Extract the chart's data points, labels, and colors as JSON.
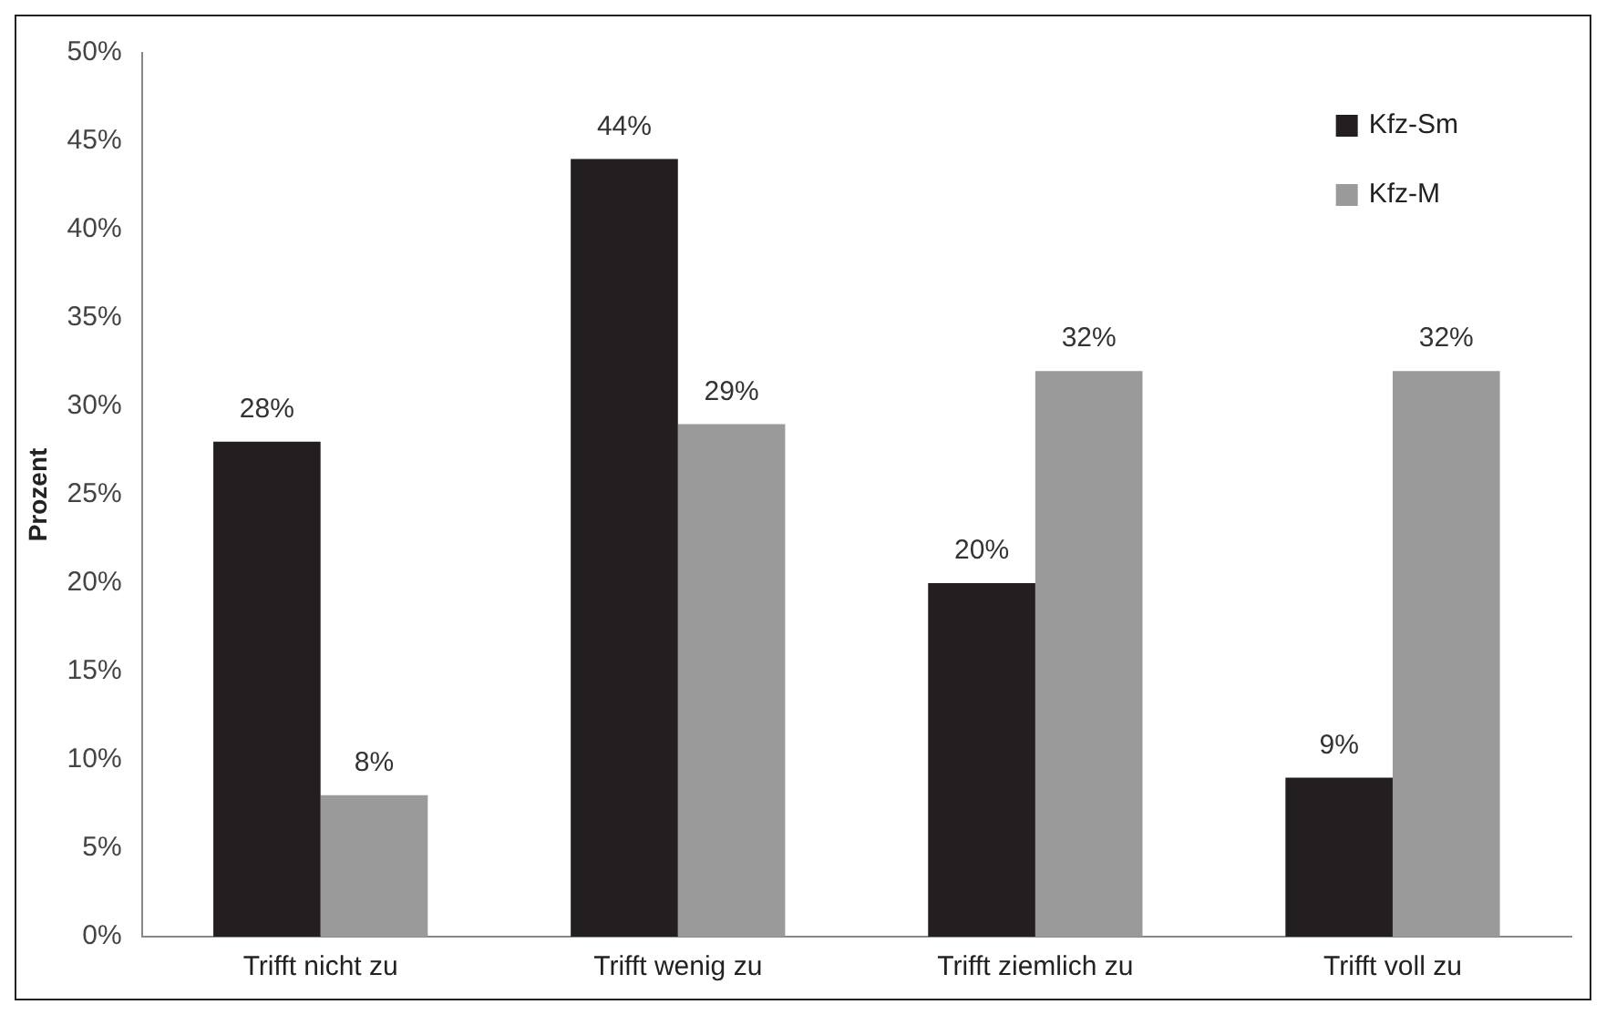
{
  "chart_data": {
    "type": "bar",
    "ylabel": "Prozent",
    "categories": [
      "Trifft nicht zu",
      "Trifft wenig zu",
      "Trifft ziemlich zu",
      "Trifft voll zu"
    ],
    "series": [
      {
        "name": "Kfz-Sm",
        "color": "#231f20",
        "values": [
          28,
          44,
          20,
          9
        ],
        "value_labels": [
          "28%",
          "44%",
          "20%",
          "9%"
        ]
      },
      {
        "name": "Kfz-M",
        "color": "#9a9a9a",
        "values": [
          8,
          29,
          32,
          32
        ],
        "value_labels": [
          "8%",
          "29%",
          "32%",
          "32%"
        ]
      }
    ],
    "ylim": [
      0,
      50
    ],
    "yticks": [
      {
        "value": 0,
        "label": "0%"
      },
      {
        "value": 5,
        "label": "5%"
      },
      {
        "value": 10,
        "label": "10%"
      },
      {
        "value": 15,
        "label": "15%"
      },
      {
        "value": 20,
        "label": "20%"
      },
      {
        "value": 25,
        "label": "25%"
      },
      {
        "value": 30,
        "label": "30%"
      },
      {
        "value": 35,
        "label": "35%"
      },
      {
        "value": 40,
        "label": "40%"
      },
      {
        "value": 45,
        "label": "45%"
      },
      {
        "value": 50,
        "label": "50%"
      }
    ],
    "grid": false,
    "legend": "top right"
  }
}
